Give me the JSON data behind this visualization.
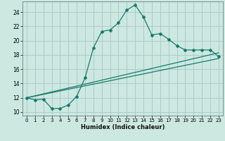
{
  "title": "",
  "xlabel": "Humidex (Indice chaleur)",
  "background_color": "#cce8e0",
  "grid_color": "#aacccc",
  "line_color": "#1a7a6e",
  "xlim": [
    -0.5,
    23.5
  ],
  "ylim": [
    9.5,
    25.5
  ],
  "xticks": [
    0,
    1,
    2,
    3,
    4,
    5,
    6,
    7,
    8,
    9,
    10,
    11,
    12,
    13,
    14,
    15,
    16,
    17,
    18,
    19,
    20,
    21,
    22,
    23
  ],
  "yticks": [
    10,
    12,
    14,
    16,
    18,
    20,
    22,
    24
  ],
  "curve1_x": [
    0,
    1,
    2,
    3,
    4,
    5,
    6,
    7,
    8,
    9,
    10,
    11,
    12,
    13,
    14,
    15,
    16,
    17,
    18,
    19,
    20,
    21,
    22,
    23
  ],
  "curve1_y": [
    12.0,
    11.7,
    11.8,
    10.5,
    10.5,
    11.0,
    12.2,
    14.8,
    19.0,
    21.3,
    21.5,
    22.5,
    24.3,
    25.0,
    23.3,
    20.8,
    21.0,
    20.2,
    19.3,
    18.7,
    18.7,
    18.7,
    18.7,
    17.8
  ],
  "curve2_x": [
    0,
    23
  ],
  "curve2_y": [
    12.0,
    18.3
  ],
  "curve3_x": [
    0,
    23
  ],
  "curve3_y": [
    12.0,
    17.5
  ]
}
